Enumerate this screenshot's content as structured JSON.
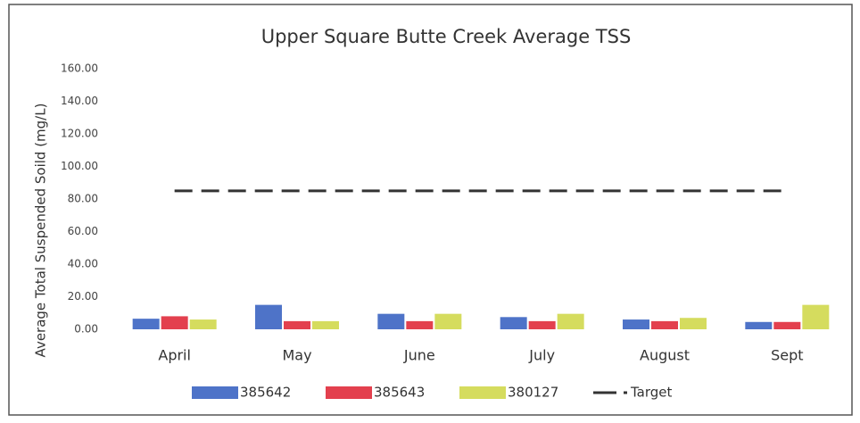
{
  "chart_data": {
    "type": "bar",
    "title": "Upper Square Butte Creek Average TSS",
    "y_label": "Average Total Suspended Soild (mg/L)",
    "categories": [
      "April",
      "May",
      "June",
      "July",
      "August",
      "Sept"
    ],
    "series": [
      {
        "name": "385642",
        "color": "#4e73c8",
        "values": [
          6.5,
          15,
          9.5,
          7.5,
          6,
          4.5
        ]
      },
      {
        "name": "385643",
        "color": "#e3404e",
        "values": [
          8,
          5,
          5,
          5,
          5,
          4.5
        ]
      },
      {
        "name": "380127",
        "color": "#d5dc5e",
        "values": [
          6,
          5,
          9.5,
          9.5,
          7,
          15
        ]
      },
      {
        "name": "Target",
        "type": "line",
        "color": "#333333",
        "values": [
          85,
          85,
          85,
          85,
          85,
          85
        ]
      }
    ],
    "ylim": [
      0,
      160
    ],
    "yticks": [
      {
        "value": 0,
        "label": "0.00"
      },
      {
        "value": 20,
        "label": "20.00"
      },
      {
        "value": 40,
        "label": "40.00"
      },
      {
        "value": 60,
        "label": "60.00"
      },
      {
        "value": 80,
        "label": "80.00"
      },
      {
        "value": 100,
        "label": "100.00"
      },
      {
        "value": 120,
        "label": "120.00"
      },
      {
        "value": 140,
        "label": "140.00"
      },
      {
        "value": 160,
        "label": "160.00"
      }
    ],
    "grid": false,
    "legend": "bottom"
  }
}
